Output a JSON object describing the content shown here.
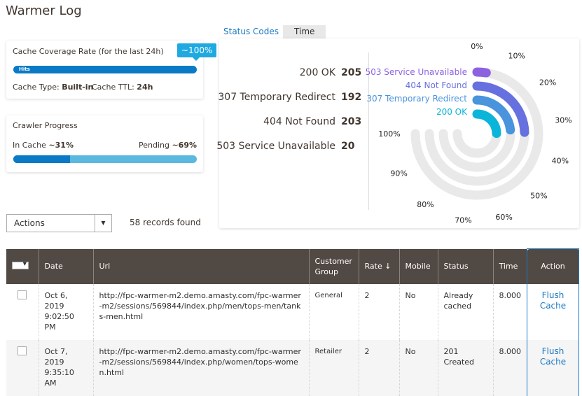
{
  "page_title": "Warmer Log",
  "coverage": {
    "title": "Cache Coverage Rate (for the last 24h)",
    "badge": "~100%",
    "bar_label": "Hits",
    "fill_percent": 100,
    "cache_type_label": "Cache Type:",
    "cache_type": "Built-in",
    "ttl_label": "Cache TTL:",
    "ttl": "24h"
  },
  "crawler": {
    "title": "Crawler Progress",
    "in_cache_label": "In Cache",
    "in_cache": "~31%",
    "pending_label": "Pending",
    "pending": "~69%",
    "fill_percent": 31
  },
  "tabs": [
    "Status Codes",
    "Time"
  ],
  "status_codes": [
    {
      "label": "200 OK",
      "count": 205,
      "color": "#0bb5da"
    },
    {
      "label": "307 Temporary Redirect",
      "count": 192,
      "color": "#4a93dd"
    },
    {
      "label": "404 Not Found",
      "count": 203,
      "color": "#6670df"
    },
    {
      "label": "503 Service Unavailable",
      "count": 20,
      "color": "#8d62e0"
    }
  ],
  "chart_data": {
    "type": "radial-bar",
    "scale_ticks": [
      "0%",
      "10%",
      "20%",
      "30%",
      "40%",
      "50%",
      "60%",
      "70%",
      "80%",
      "90%",
      "100%"
    ],
    "series": [
      {
        "name": "503 Service Unavailable",
        "value": 20
      },
      {
        "name": "404 Not Found",
        "value": 203
      },
      {
        "name": "307 Temporary Redirect",
        "value": 192
      },
      {
        "name": "200 OK",
        "value": 205
      }
    ]
  },
  "actions": {
    "label": "Actions"
  },
  "records": "58 records found",
  "table": {
    "headers": [
      "Date",
      "Url",
      "Customer Group",
      "Rate ↓",
      "Mobile",
      "Status",
      "Time",
      "Action"
    ],
    "rows": [
      {
        "date": "Oct 6, 2019 9:02:50 PM",
        "url": "http://fpc-warmer-m2.demo.amasty.com/fpc-warmer-m2/sessions/569844/index.php/men/tops-men/tanks-men.html",
        "group": "General",
        "rate": "2",
        "mobile": "No",
        "status": "Already cached",
        "time": "8.000",
        "action": "Flush Cache"
      },
      {
        "date": "Oct 7, 2019 9:35:10 AM",
        "url": "http://fpc-warmer-m2.demo.amasty.com/fpc-warmer-m2/sessions/569844/index.php/women/tops-women.html",
        "group": "Retailer",
        "rate": "2",
        "mobile": "No",
        "status": "201 Created",
        "time": "8.000",
        "action": "Flush Cache"
      }
    ]
  }
}
